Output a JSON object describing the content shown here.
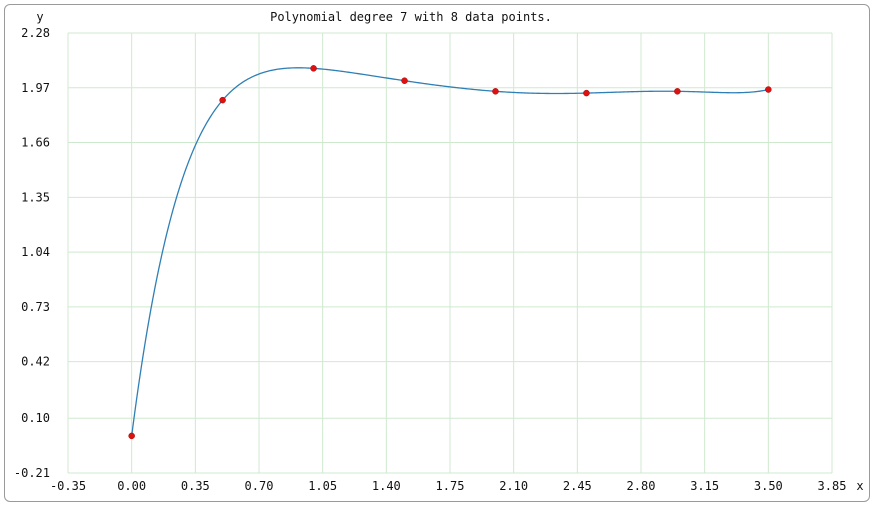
{
  "chart_data": {
    "type": "line",
    "title": "Polynomial degree 7 with 8 data points.",
    "xlabel": "x",
    "ylabel": "y",
    "xlim": [
      -0.35,
      3.85
    ],
    "ylim": [
      -0.21,
      2.28
    ],
    "x_ticks": [
      "-0.35",
      "0.00",
      "0.35",
      "0.70",
      "1.05",
      "1.40",
      "1.75",
      "2.10",
      "2.45",
      "2.80",
      "3.15",
      "3.50",
      "3.85"
    ],
    "y_ticks": [
      "-0.21",
      "0.10",
      "0.42",
      "0.73",
      "1.04",
      "1.35",
      "1.66",
      "1.97",
      "2.28"
    ],
    "grid": true,
    "series": [
      {
        "values": [
          {
            "x": 0.0,
            "y": 0.0
          },
          {
            "x": 0.5,
            "y": 1.9
          },
          {
            "x": 1.0,
            "y": 2.08
          },
          {
            "x": 1.5,
            "y": 2.01
          },
          {
            "x": 2.0,
            "y": 1.95
          },
          {
            "x": 2.5,
            "y": 1.94
          },
          {
            "x": 3.0,
            "y": 1.95
          },
          {
            "x": 3.5,
            "y": 1.96
          }
        ]
      }
    ],
    "colors": {
      "curve": "#2f7fb5",
      "points": "#dd1111",
      "grid": "#cfe9cf"
    }
  }
}
